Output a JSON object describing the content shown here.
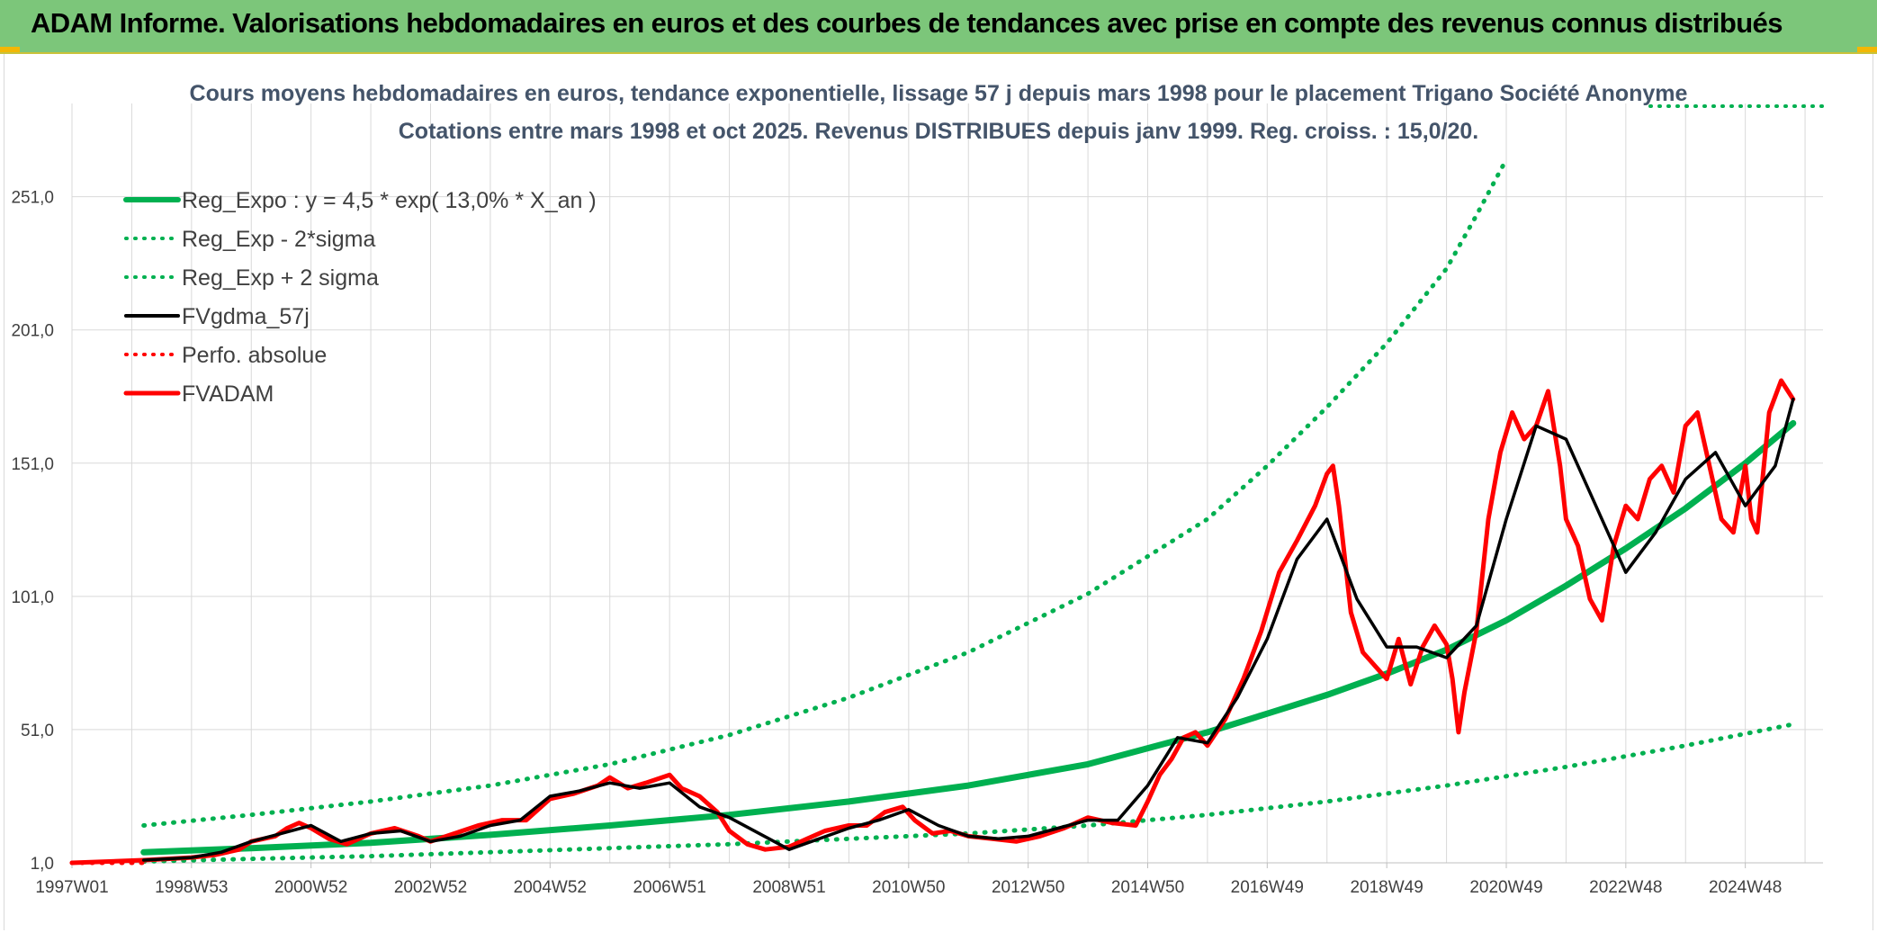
{
  "header": {
    "title": "ADAM Informe. Valorisations hebdomadaires en euros et des courbes de tendances avec prise en compte des revenus connus distribués"
  },
  "colors": {
    "header_bg": "#7cc67a",
    "green": "#00b050",
    "black": "#000000",
    "red": "#ff0000",
    "grid": "#d9d9d9",
    "title_text": "#44546a"
  },
  "chart_data": {
    "type": "line",
    "title": "Cours moyens hebdomadaires en euros, tendance exponentielle, lissage 57 j depuis mars 1998 pour le placement Trigano Société Anonyme",
    "subtitle": "Cotations entre mars 1998 et oct 2025. Revenus DISTRIBUES depuis janv 1999. Reg. croiss. : 15,0/20.",
    "xlabel": "",
    "ylabel": "",
    "x_ticks": [
      "1997W01",
      "1998W53",
      "2000W52",
      "2002W52",
      "2004W52",
      "2006W51",
      "2008W51",
      "2010W50",
      "2012W50",
      "2014W50",
      "2016W49",
      "2018W49",
      "2020W49",
      "2022W48",
      "2024W48"
    ],
    "x_tick_years": [
      1997.0,
      1999.0,
      2001.0,
      2003.0,
      2005.0,
      2007.0,
      2009.0,
      2011.0,
      2013.0,
      2015.0,
      2017.0,
      2019.0,
      2021.0,
      2023.0,
      2025.0
    ],
    "xlim": [
      1997.0,
      2026.3
    ],
    "y_ticks": [
      "1,0",
      "51,0",
      "101,0",
      "151,0",
      "201,0",
      "251,0"
    ],
    "y_tick_values": [
      1,
      51,
      101,
      151,
      201,
      251
    ],
    "ylim": [
      1,
      286
    ],
    "grid": true,
    "legend_position": "top-left",
    "legend": [
      {
        "label": "Reg_Expo : y = 4,5 * exp( 13,0% *  X_an )",
        "color": "#00b050",
        "style": "solid",
        "width": 6
      },
      {
        "label": "Reg_Exp - 2*sigma",
        "color": "#00b050",
        "style": "dotted",
        "width": 4
      },
      {
        "label": "Reg_Exp + 2 sigma",
        "color": "#00b050",
        "style": "dotted",
        "width": 4
      },
      {
        "label": "FVgdma_57j",
        "color": "#000000",
        "style": "solid",
        "width": 4
      },
      {
        "label": "Perfo. absolue",
        "color": "#ff0000",
        "style": "dotted",
        "width": 3
      },
      {
        "label": "FVADAM",
        "color": "#ff0000",
        "style": "solid",
        "width": 5
      }
    ],
    "series": [
      {
        "name": "Reg_Expo : y = 4,5 * exp( 13,0% *  X_an )",
        "color": "#00b050",
        "style": "solid",
        "x": [
          1998.2,
          2000.0,
          2002.0,
          2004.0,
          2006.0,
          2008.0,
          2010.0,
          2012.0,
          2014.0,
          2016.0,
          2017.0,
          2018.0,
          2019.0,
          2020.0,
          2021.0,
          2022.0,
          2023.0,
          2024.0,
          2025.0,
          2025.8
        ],
        "y": [
          5,
          6.5,
          8.5,
          11.5,
          15,
          19,
          24,
          30,
          38,
          50,
          57,
          64,
          72,
          81,
          92,
          105,
          119,
          134,
          151,
          166
        ]
      },
      {
        "name": "Reg_Exp - 2*sigma",
        "color": "#00b050",
        "style": "dotted",
        "x": [
          1998.2,
          2000.0,
          2002.0,
          2004.0,
          2006.0,
          2008.0,
          2010.0,
          2012.0,
          2014.0,
          2016.0,
          2018.0,
          2020.0,
          2022.0,
          2024.0,
          2025.8
        ],
        "y": [
          1.5,
          2.5,
          3.5,
          5,
          6.5,
          8,
          10,
          12,
          15,
          19,
          24,
          30,
          37,
          45,
          53
        ]
      },
      {
        "name": "Reg_Exp + 2 sigma",
        "color": "#00b050",
        "style": "dotted",
        "x": [
          1998.2,
          2000.0,
          2002.0,
          2004.0,
          2006.0,
          2008.0,
          2010.0,
          2012.0,
          2014.0,
          2016.0,
          2017.0,
          2018.0,
          2019.0,
          2020.0,
          2020.5,
          2021.0
        ],
        "y": [
          15,
          19,
          24,
          30,
          38,
          49,
          63,
          80,
          102,
          130,
          150,
          172,
          196,
          224,
          244,
          265
        ]
      },
      {
        "name": "FVgdma_57j",
        "color": "#000000",
        "style": "solid",
        "x": [
          1998.2,
          1999.0,
          1999.5,
          2000.0,
          2000.5,
          2001.0,
          2001.5,
          2002.0,
          2002.5,
          2003.0,
          2003.5,
          2004.0,
          2004.5,
          2005.0,
          2005.5,
          2006.0,
          2006.5,
          2007.0,
          2007.5,
          2008.0,
          2008.5,
          2009.0,
          2009.5,
          2010.0,
          2010.5,
          2011.0,
          2011.5,
          2012.0,
          2012.5,
          2013.0,
          2013.5,
          2014.0,
          2014.5,
          2015.0,
          2015.5,
          2016.0,
          2016.5,
          2017.0,
          2017.5,
          2018.0,
          2018.5,
          2019.0,
          2019.5,
          2020.0,
          2020.5,
          2021.0,
          2021.5,
          2022.0,
          2022.5,
          2023.0,
          2023.5,
          2024.0,
          2024.5,
          2025.0,
          2025.5,
          2025.8
        ],
        "y": [
          2,
          3,
          5,
          9,
          12,
          15,
          9,
          12,
          13,
          9,
          11,
          15,
          17,
          26,
          28,
          31,
          29,
          31,
          22,
          18,
          12,
          6,
          10,
          14,
          17,
          21,
          15,
          11,
          10,
          11,
          14,
          17,
          17,
          30,
          48,
          46,
          63,
          85,
          115,
          130,
          100,
          82,
          82,
          78,
          90,
          130,
          165,
          160,
          135,
          110,
          125,
          145,
          155,
          135,
          150,
          175
        ]
      },
      {
        "name": "Perfo. absolue",
        "color": "#ff0000",
        "style": "dotted",
        "x": [
          1997.0,
          1998.2
        ],
        "y": [
          1,
          1
        ]
      },
      {
        "name": "FVADAM",
        "color": "#ff0000",
        "style": "solid",
        "x": [
          1997.0,
          1998.2,
          1998.6,
          1999.0,
          1999.4,
          1999.8,
          2000.0,
          2000.4,
          2000.6,
          2000.8,
          2001.0,
          2001.3,
          2001.6,
          2002.0,
          2002.4,
          2002.8,
          2003.0,
          2003.4,
          2003.8,
          2004.2,
          2004.6,
          2005.0,
          2005.4,
          2005.8,
          2006.0,
          2006.3,
          2006.6,
          2007.0,
          2007.2,
          2007.5,
          2007.8,
          2008.0,
          2008.3,
          2008.6,
          2009.0,
          2009.3,
          2009.6,
          2010.0,
          2010.3,
          2010.6,
          2010.9,
          2011.1,
          2011.4,
          2011.7,
          2012.0,
          2012.4,
          2012.8,
          2013.2,
          2013.6,
          2014.0,
          2014.4,
          2014.8,
          2015.0,
          2015.2,
          2015.4,
          2015.6,
          2015.8,
          2016.0,
          2016.3,
          2016.6,
          2016.9,
          2017.2,
          2017.5,
          2017.8,
          2018.0,
          2018.1,
          2018.2,
          2018.4,
          2018.6,
          2018.8,
          2019.0,
          2019.2,
          2019.4,
          2019.6,
          2019.8,
          2020.0,
          2020.1,
          2020.2,
          2020.3,
          2020.5,
          2020.7,
          2020.9,
          2021.1,
          2021.3,
          2021.5,
          2021.7,
          2021.9,
          2022.0,
          2022.2,
          2022.4,
          2022.6,
          2022.8,
          2023.0,
          2023.2,
          2023.4,
          2023.6,
          2023.8,
          2024.0,
          2024.2,
          2024.4,
          2024.6,
          2024.8,
          2025.0,
          2025.1,
          2025.2,
          2025.4,
          2025.6,
          2025.8
        ],
        "y": [
          1,
          2,
          2.5,
          3,
          4,
          6,
          9,
          11,
          14,
          16,
          14,
          10,
          8,
          12,
          14,
          11,
          9,
          12,
          15,
          17,
          17,
          25,
          27,
          30,
          33,
          29,
          31,
          34,
          29,
          26,
          20,
          13,
          8,
          6,
          7,
          10,
          13,
          15,
          15,
          20,
          22,
          17,
          12,
          13,
          11,
          10,
          9,
          11,
          14,
          18,
          16,
          15,
          24,
          34,
          40,
          48,
          50,
          45,
          55,
          70,
          88,
          110,
          122,
          135,
          147,
          150,
          135,
          95,
          80,
          75,
          70,
          85,
          68,
          82,
          90,
          83,
          70,
          50,
          65,
          88,
          130,
          155,
          170,
          160,
          165,
          178,
          150,
          130,
          120,
          100,
          92,
          120,
          135,
          130,
          145,
          150,
          140,
          165,
          170,
          150,
          130,
          125,
          150,
          130,
          125,
          170,
          182,
          175
        ]
      }
    ]
  }
}
